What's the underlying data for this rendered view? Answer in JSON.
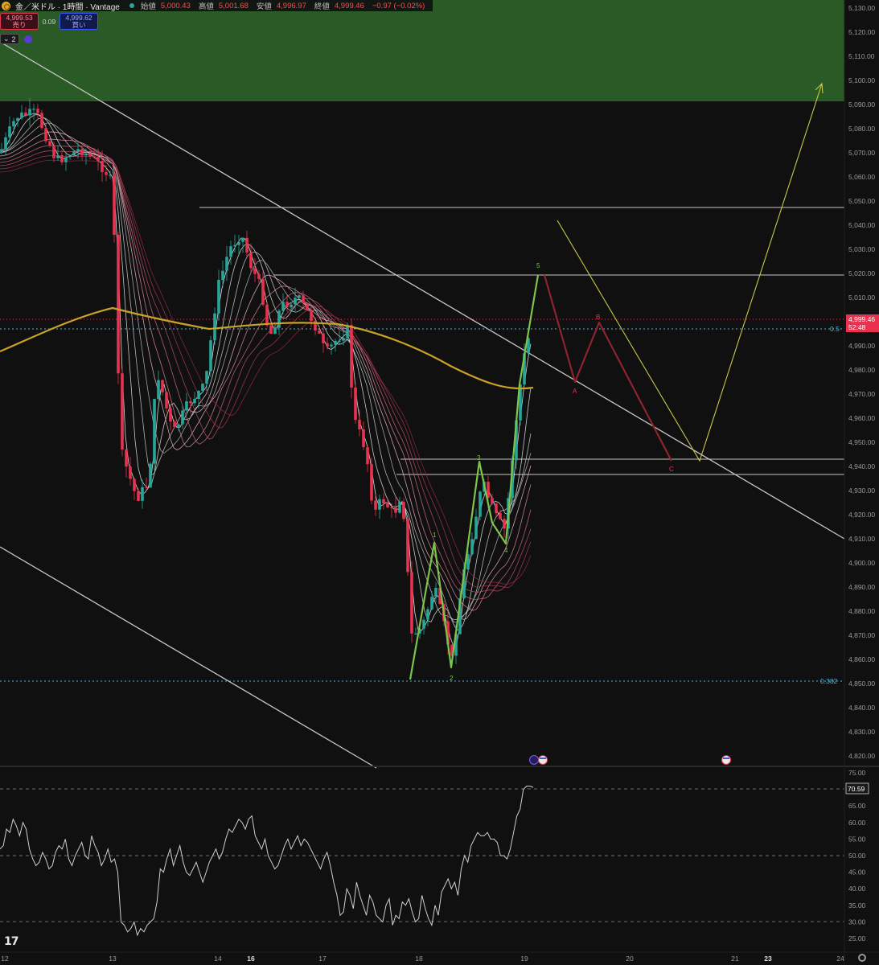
{
  "header": {
    "title": "金／米ドル · 1時間 · Vantage",
    "open_label": "始値",
    "open": "5,000.43",
    "high_label": "高値",
    "high": "5,001.68",
    "low_label": "安値",
    "low": "4,996.97",
    "close_label": "終値",
    "close": "4,999.46",
    "change": "−0.97 (−0.02%)"
  },
  "trade_panel": {
    "sell_price": "4,999.53",
    "sell_label": "売り",
    "spread": "0.09",
    "buy_price": "4,999.62",
    "buy_label": "買い",
    "indicator_count": "2"
  },
  "price_axis": {
    "ticks": [
      "5,130.00",
      "5,120.00",
      "5,110.00",
      "5,100.00",
      "5,090.00",
      "5,080.00",
      "5,070.00",
      "5,060.00",
      "5,050.00",
      "5,040.00",
      "5,030.00",
      "5,020.00",
      "5,010.00",
      "4,990.00",
      "4,980.00",
      "4,970.00",
      "4,960.00",
      "4,950.00",
      "4,940.00",
      "4,930.00",
      "4,920.00",
      "4,910.00",
      "4,900.00",
      "4,890.00",
      "4,880.00",
      "4,870.00",
      "4,860.00",
      "4,850.00",
      "4,840.00",
      "4,830.00",
      "4,820.00"
    ],
    "last_price": "4,999.46",
    "countdown": "52:48"
  },
  "rsi_axis": {
    "ticks": [
      "75.00",
      "70.00",
      "65.00",
      "60.00",
      "55.00",
      "50.00",
      "45.00",
      "40.00",
      "35.00",
      "30.00",
      "25.00"
    ],
    "current": "70.59"
  },
  "time_axis": {
    "labels": [
      "12",
      "13",
      "14",
      "16",
      "17",
      "18",
      "19",
      "20",
      "21",
      "23",
      "24"
    ]
  },
  "fib": {
    "level_05": "0.5",
    "level_0382": "0.382"
  },
  "wave_labels": {
    "w1": "1",
    "w2": "2",
    "w3": "3",
    "w4": "4",
    "w5": "5",
    "wa": "A",
    "wb": "B",
    "wc": "C"
  },
  "colors": {
    "background": "#101010",
    "up": "#26a69a",
    "down": "#e8324f",
    "supply_zone": "#2a5a25",
    "ma200": "#c9a227",
    "elliott_impulse": "#7cc44a",
    "correction": "#8e2430",
    "projection": "#c8c84a"
  },
  "chart_data": [
    {
      "type": "candlestick",
      "title": "金／米ドル · 1時間 · Vantage",
      "xlabel": "",
      "ylabel": "",
      "ylim": [
        4815,
        5135
      ],
      "last_price": 4999.46,
      "fib_levels": [
        {
          "label": "0.5",
          "y": 4995.5
        },
        {
          "label": "0.382",
          "y": 4851.3
        }
      ],
      "horizontal_levels": [
        5045.7,
        5017.3,
        4942.7,
        4936.2
      ],
      "supply_zone": [
        5089,
        5135
      ],
      "elliott_wave_impulse": [
        {
          "label": "1",
          "x": "18",
          "y": 4878
        },
        {
          "label": "2",
          "x": "18",
          "y": 4856
        },
        {
          "label": "3",
          "x": "18",
          "y": 4941
        },
        {
          "label": "4",
          "x": "18",
          "y": 4912
        },
        {
          "label": "5",
          "x": "19",
          "y": 5018
        }
      ],
      "projection_abc": [
        {
          "label": "A",
          "x": "19",
          "y": 4975
        },
        {
          "label": "B",
          "x": "20",
          "y": 4999
        },
        {
          "label": "C",
          "x": "20",
          "y": 4940
        }
      ],
      "target_high": 5095,
      "x_labels": [
        "12",
        "13",
        "14",
        "16",
        "17",
        "18",
        "19",
        "20",
        "21",
        "23",
        "24"
      ]
    },
    {
      "type": "line",
      "title": "",
      "series": [
        {
          "values": [
            52,
            53,
            58,
            57,
            61,
            59,
            56,
            60,
            58,
            52,
            49,
            47,
            48,
            51,
            49,
            46,
            47,
            51,
            53,
            52,
            55,
            49,
            47,
            50,
            52,
            54,
            50,
            49,
            56,
            53,
            51,
            47,
            49,
            52,
            48,
            49,
            45,
            30,
            29,
            27,
            28,
            30,
            26,
            28,
            27,
            29,
            30,
            31,
            36,
            46,
            45,
            49,
            52,
            47,
            50,
            53,
            48,
            45,
            44,
            46,
            48,
            45,
            42,
            45,
            48,
            50,
            52,
            49,
            51,
            55,
            58,
            57,
            59,
            61,
            60,
            58,
            61,
            62,
            56,
            54,
            52,
            55,
            50,
            48,
            46,
            47,
            50,
            53,
            55,
            52,
            54,
            56,
            53,
            55,
            54,
            52,
            50,
            48,
            46,
            49,
            51,
            47,
            42,
            38,
            32,
            33,
            40,
            38,
            34,
            42,
            38,
            35,
            32,
            38,
            36,
            32,
            31,
            30,
            35,
            37,
            29,
            32,
            31,
            36,
            35,
            37,
            33,
            30,
            31,
            38,
            34,
            31,
            29,
            35,
            32,
            39,
            41,
            43,
            40,
            42,
            38,
            46,
            50,
            48,
            53,
            55,
            57,
            56,
            56,
            57,
            55,
            55,
            54,
            50,
            50,
            49,
            52,
            57,
            62,
            64,
            70,
            71,
            71,
            70.6
          ]
        }
      ],
      "ylim": [
        23,
        76
      ],
      "levels": [
        70,
        50,
        30
      ],
      "current": 70.59
    }
  ]
}
